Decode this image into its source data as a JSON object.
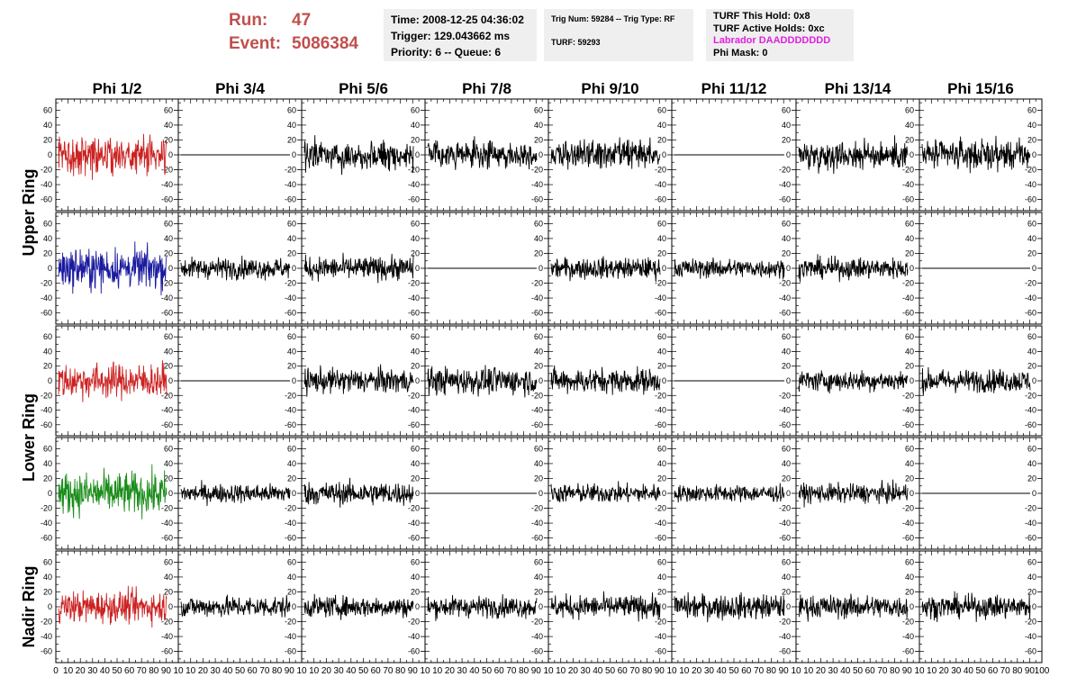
{
  "header": {
    "run_label": "Run:",
    "run_value": "47",
    "event_label": "Event:",
    "event_value": "5086384",
    "time": "Time: 2008-12-25 04:36:02",
    "trigger": "Trigger: 129.043662 ms",
    "priority": "Priority: 6 -- Queue: 6",
    "trig_num": "Trig Num: 59284 -- Trig Type: RF",
    "turf": "TURF: 59293",
    "turf_hold": "TURF This Hold: 0x8",
    "turf_active": "TURF Active Holds: 0xc",
    "labrador": "Labrador DAADDDDDDD",
    "phi_mask": "Phi Mask: 0"
  },
  "colors": {
    "red": "#cc2222",
    "blue": "#1a1aa0",
    "green": "#1a8c1a",
    "black": "#000000",
    "labrador": "#e020e0",
    "run_text": "#c0504d"
  },
  "chart_data": {
    "type": "line",
    "columns": [
      "Phi 1/2",
      "Phi 3/4",
      "Phi 5/6",
      "Phi 7/8",
      "Phi 9/10",
      "Phi 11/12",
      "Phi 13/14",
      "Phi 15/16"
    ],
    "ring_labels": [
      "Upper Ring",
      "Lower Ring",
      "Nadir Ring"
    ],
    "xlim": [
      0,
      100
    ],
    "ylim": [
      -75,
      75
    ],
    "x_ticks": [
      0,
      10,
      20,
      30,
      40,
      50,
      60,
      70,
      80,
      90,
      100
    ],
    "y_ticks": [
      -60,
      -40,
      -20,
      0,
      20,
      40,
      60
    ],
    "samples": 260,
    "rows": [
      {
        "colors": [
          "red",
          "black",
          "black",
          "black",
          "black",
          "black",
          "black",
          "black"
        ],
        "amplitudes": [
          18,
          0,
          14,
          12,
          13,
          0,
          13,
          14
        ]
      },
      {
        "colors": [
          "blue",
          "black",
          "black",
          "black",
          "black",
          "black",
          "black",
          "black"
        ],
        "amplitudes": [
          19,
          10,
          11,
          0,
          10,
          9,
          10,
          0
        ]
      },
      {
        "colors": [
          "red",
          "black",
          "black",
          "black",
          "black",
          "black",
          "black",
          "black"
        ],
        "amplitudes": [
          17,
          0,
          12,
          13,
          12,
          0,
          10,
          11
        ]
      },
      {
        "colors": [
          "green",
          "black",
          "black",
          "black",
          "black",
          "black",
          "black",
          "black"
        ],
        "amplitudes": [
          20,
          9,
          11,
          0,
          9,
          8,
          9,
          0
        ]
      },
      {
        "colors": [
          "red",
          "black",
          "black",
          "black",
          "black",
          "black",
          "black",
          "black"
        ],
        "amplitudes": [
          15,
          10,
          10,
          10,
          11,
          12,
          11,
          11
        ]
      }
    ]
  }
}
